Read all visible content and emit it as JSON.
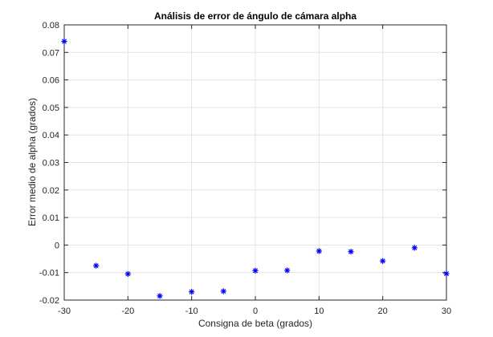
{
  "chart_data": {
    "type": "scatter",
    "title": "Análisis de error de ángulo de cámara alpha",
    "xlabel": "Consigna de beta (grados)",
    "ylabel": "Error medio de alpha (grados)",
    "xlim": [
      -30,
      30
    ],
    "ylim": [
      -0.02,
      0.08
    ],
    "xticks": [
      -30,
      -20,
      -10,
      0,
      10,
      20,
      30
    ],
    "xtick_labels": [
      "-30",
      "-20",
      "-10",
      "0",
      "10",
      "20",
      "30"
    ],
    "yticks": [
      -0.02,
      -0.01,
      0,
      0.01,
      0.02,
      0.03,
      0.04,
      0.05,
      0.06,
      0.07,
      0.08
    ],
    "ytick_labels": [
      "-0.02",
      "-0.01",
      "0",
      "0.01",
      "0.02",
      "0.03",
      "0.04",
      "0.05",
      "0.06",
      "0.07",
      "0.08"
    ],
    "grid": true,
    "marker": "*",
    "marker_color": "#0000ff",
    "series": [
      {
        "x": [
          -30,
          -25,
          -20,
          -15,
          -10,
          -5,
          0,
          5,
          10,
          15,
          20,
          25,
          30
        ],
        "y": [
          0.074,
          -0.0075,
          -0.0105,
          -0.0185,
          -0.017,
          -0.0168,
          -0.0093,
          -0.0092,
          -0.0022,
          -0.0024,
          -0.0058,
          -0.001,
          -0.0104
        ]
      }
    ]
  }
}
